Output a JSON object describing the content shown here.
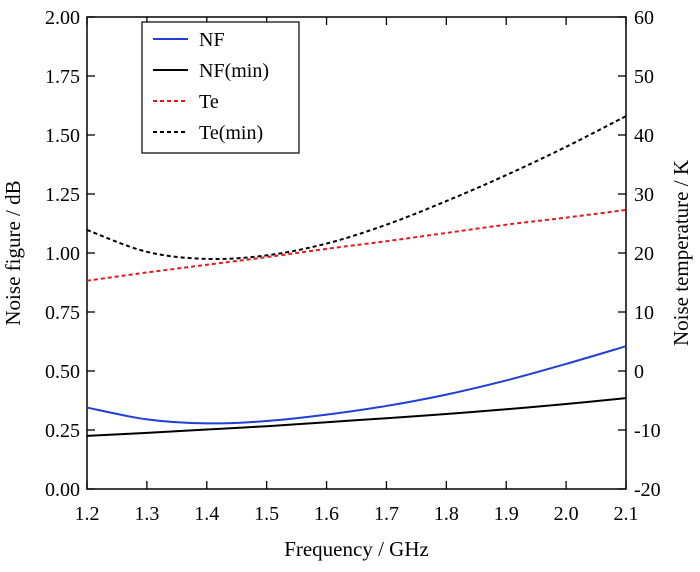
{
  "chart_data": {
    "type": "line",
    "xlabel": "Frequency / GHz",
    "ylabel": "Noise figure / dB",
    "y2label": "Noise temperature / K",
    "xlim": [
      1.2,
      2.1
    ],
    "ylim": [
      0,
      2.0
    ],
    "y2lim": [
      -20,
      60
    ],
    "x_ticks": [
      "1.2",
      "1.3",
      "1.4",
      "1.5",
      "1.6",
      "1.7",
      "1.8",
      "1.9",
      "2.0",
      "2.1"
    ],
    "y_ticks": [
      "0.00",
      "0.25",
      "0.50",
      "0.75",
      "1.00",
      "1.25",
      "1.50",
      "1.75",
      "2.00"
    ],
    "y2_ticks": [
      "-20",
      "-10",
      "0",
      "10",
      "20",
      "30",
      "40",
      "50",
      "60"
    ],
    "legend_position": "top-left",
    "x": [
      1.2,
      1.3,
      1.4,
      1.5,
      1.6,
      1.7,
      1.8,
      1.9,
      2.0,
      2.1
    ],
    "series": [
      {
        "name": "NF",
        "axis": "left",
        "color": "#1f3fd6",
        "dash": "solid",
        "values": [
          0.345,
          0.295,
          0.278,
          0.288,
          0.315,
          0.352,
          0.4,
          0.46,
          0.53,
          0.605
        ]
      },
      {
        "name": "NF(min)",
        "axis": "left",
        "color": "#000000",
        "dash": "solid",
        "values": [
          0.225,
          0.238,
          0.252,
          0.266,
          0.283,
          0.3,
          0.318,
          0.338,
          0.36,
          0.385
        ]
      },
      {
        "name": "Te",
        "axis": "right",
        "color": "#e31a1c",
        "dash": "dashed",
        "values": [
          15.3,
          16.7,
          18.0,
          19.3,
          20.7,
          22.0,
          23.4,
          24.8,
          26.0,
          27.3
        ]
      },
      {
        "name": "Te(min)",
        "axis": "right",
        "color": "#000000",
        "dash": "dashed",
        "values": [
          23.9,
          20.2,
          19.0,
          19.6,
          21.6,
          24.8,
          28.8,
          33.2,
          38.0,
          43.2
        ]
      }
    ]
  }
}
